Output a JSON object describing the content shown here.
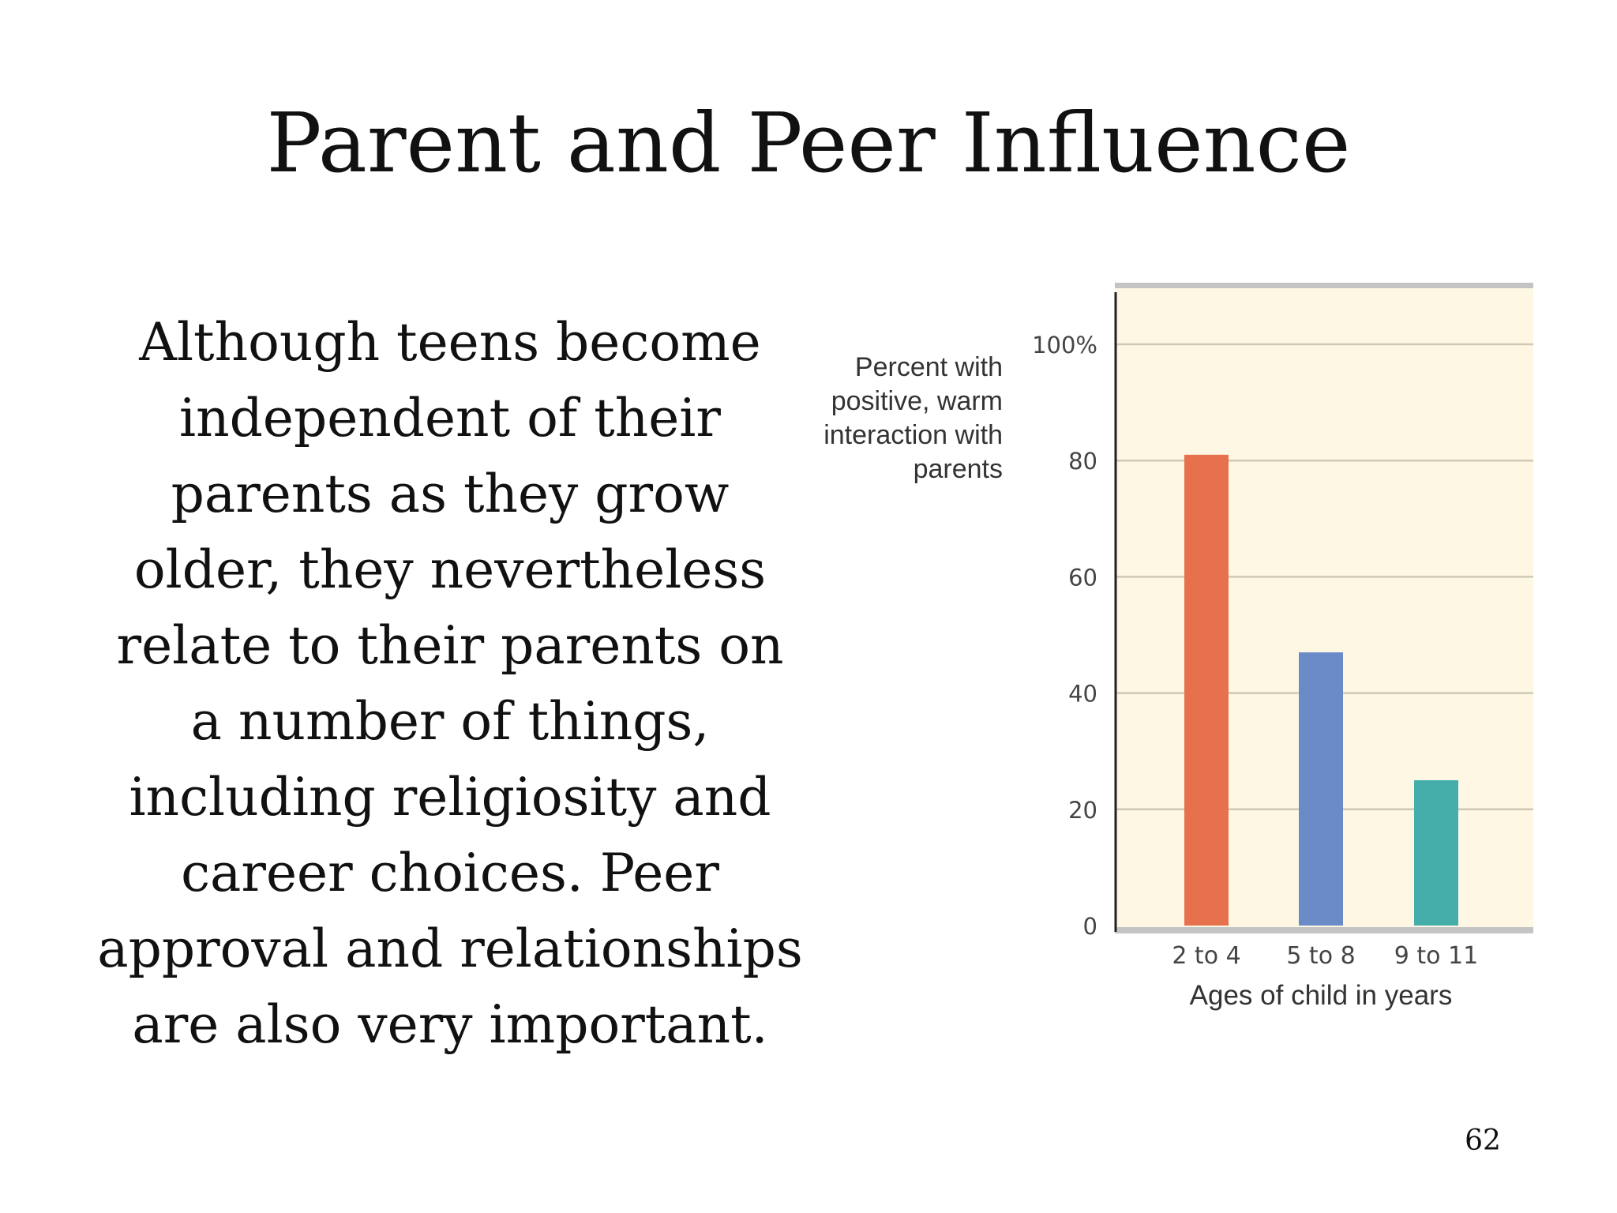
{
  "slide": {
    "title": "Parent and Peer Influence",
    "body": "Although teens become independent of their parents as they grow older, they nevertheless relate to their parents on a number of things, including religiosity and career choices. Peer approval and relationships are also very important.",
    "page_number": "62"
  },
  "colors": {
    "plot_background": "#fdf7e4",
    "frame_gray": "#c4c4c4",
    "grid": "#cfc8b6",
    "axis": "#222222"
  },
  "chart_data": {
    "type": "bar",
    "categories": [
      "2 to 4",
      "5 to 8",
      "9 to 11"
    ],
    "values": [
      81,
      47,
      25
    ],
    "bar_colors": [
      "#e8714d",
      "#6b8ac8",
      "#45aeab"
    ],
    "ylabel": "Percent with positive, warm interaction with parents",
    "xlabel": "Ages of child in years",
    "yticks": [
      "0",
      "20",
      "40",
      "60",
      "80",
      "100%"
    ],
    "ylim": [
      0,
      100
    ],
    "grid": true
  }
}
